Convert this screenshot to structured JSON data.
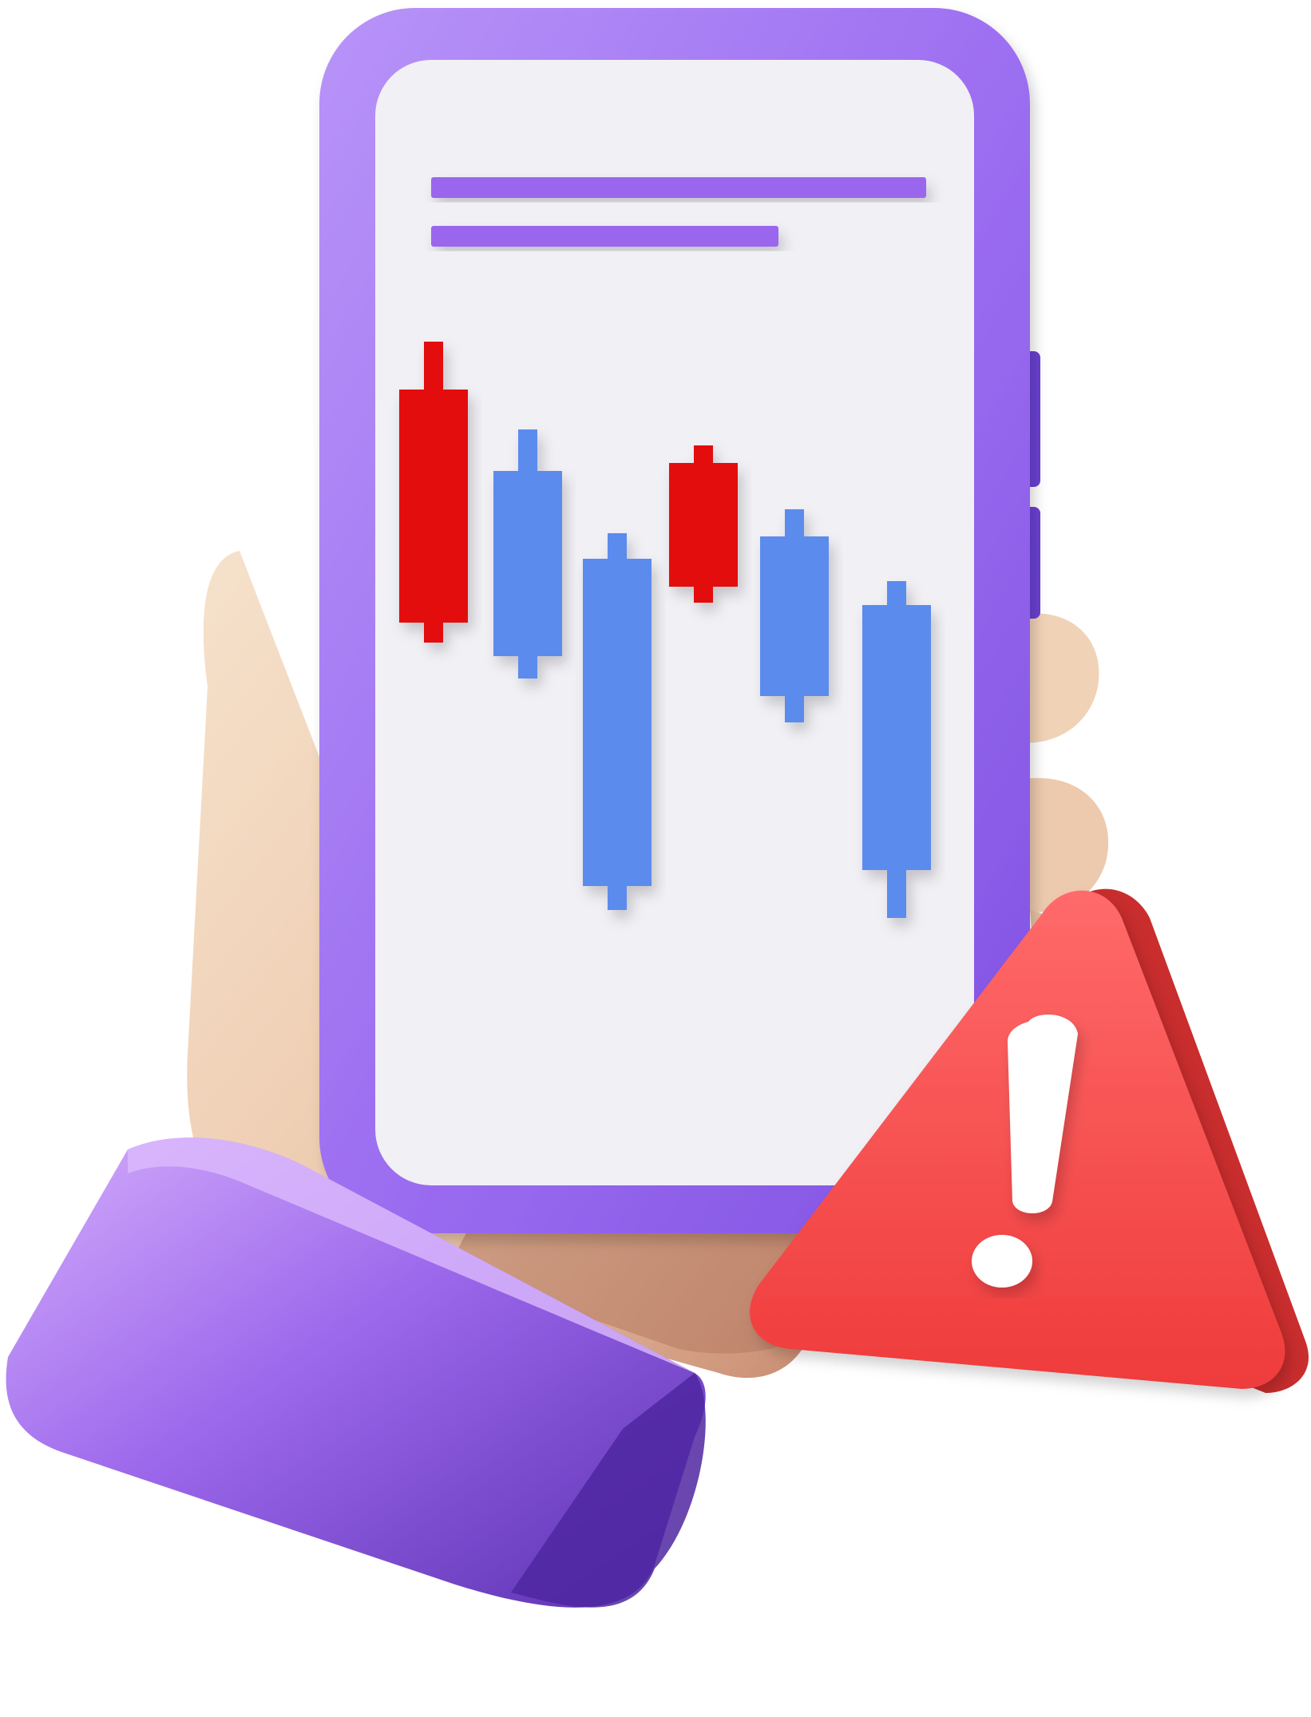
{
  "colors": {
    "background": "#ffffff",
    "phone_frame": "#9b6cf0",
    "phone_frame_light": "#b48cf7",
    "phone_frame_dark": "#7b4ee0",
    "side_button": "#6a40d2",
    "screen": "#f1f0f5",
    "text_line": "#9b66ee",
    "candle_down": "#e31010",
    "candle_up": "#5b8bee",
    "skin": "#f1d7bd",
    "skin_shadow": "#d9a88a",
    "cuff": "#8e5be6",
    "cuff_light": "#d0a8fb",
    "cuff_dark": "#5a2fb0",
    "warning": "#f24848",
    "warning_side": "#c92d2d",
    "exclamation": "#ffffff"
  },
  "icons": {
    "phone": "smartphone-icon",
    "chart": "candlestick-chart-icon",
    "warning": "warning-triangle-icon",
    "hand": "hand-icon"
  },
  "screen_text_lines": 2,
  "chart_data": {
    "type": "candlestick",
    "trend": "down",
    "candles": [
      {
        "color": "red"
      },
      {
        "color": "blue"
      },
      {
        "color": "blue"
      },
      {
        "color": "red"
      },
      {
        "color": "blue"
      },
      {
        "color": "blue"
      }
    ]
  }
}
